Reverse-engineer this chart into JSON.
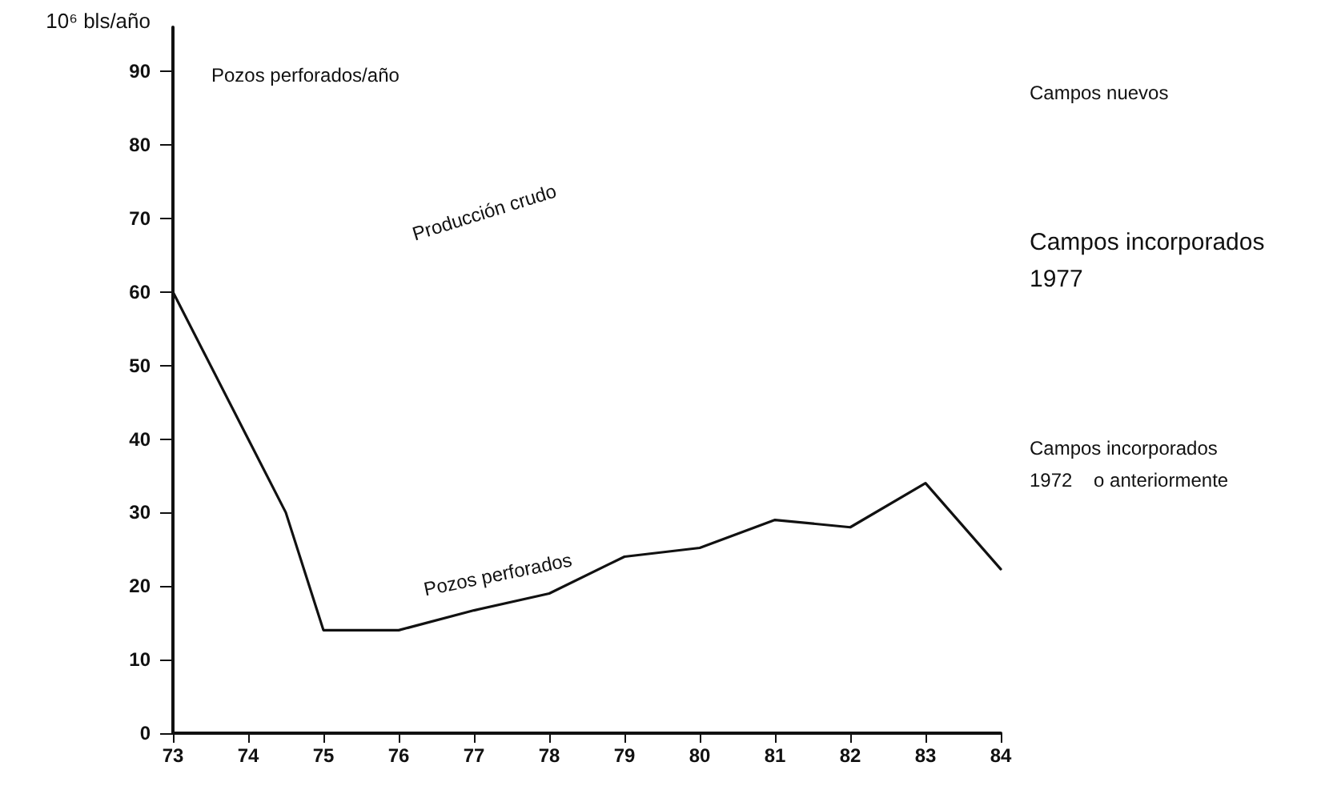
{
  "chart_data": {
    "type": "line",
    "ylabel": "10⁶ bls/año",
    "annotations": [
      "Pozos perforados/año",
      "Producción crudo",
      "Campos nuevos",
      "Campos incorporados\n1977",
      "Campos incorporados\n1972    o anteriormente"
    ],
    "x": [
      73,
      74,
      74.5,
      75,
      76,
      77,
      78,
      79,
      80,
      81,
      82,
      83,
      84
    ],
    "series": [
      {
        "name": "Pozos perforados",
        "color": "#111111",
        "values": [
          60,
          40,
          30,
          14,
          14,
          16.7,
          19,
          24,
          25.2,
          29,
          28,
          34,
          22.3
        ]
      }
    ],
    "xlim": [
      73,
      84
    ],
    "xticks": [
      73,
      74,
      75,
      76,
      77,
      78,
      79,
      80,
      81,
      82,
      83,
      84
    ],
    "ylim": [
      0,
      96
    ],
    "yticks": [
      0,
      10,
      20,
      30,
      40,
      50,
      60,
      70,
      80,
      90
    ],
    "grid": false,
    "legend": false,
    "marker": "none",
    "line_style": "solid"
  }
}
